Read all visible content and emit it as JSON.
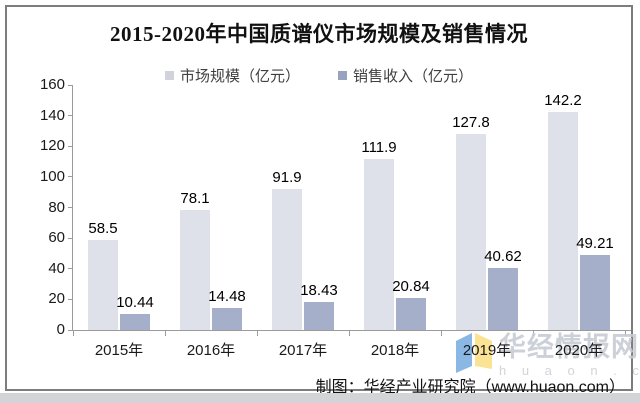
{
  "title": "2015-2020年中国质谱仪市场规模及销售情况",
  "legend": [
    {
      "label": "市场规模（亿元）",
      "color": "#d2d3da"
    },
    {
      "label": "销售收入（亿元）",
      "color": "#98a3c0"
    }
  ],
  "chart_data": {
    "type": "bar",
    "title": "2015-2020年中国质谱仪市场规模及销售情况",
    "categories": [
      "2015年",
      "2016年",
      "2017年",
      "2018年",
      "2019年",
      "2020年"
    ],
    "series": [
      {
        "key": "market-size",
        "name": "市场规模（亿元）",
        "color": "#dfe1ea",
        "values": [
          58.5,
          78.1,
          91.9,
          111.9,
          127.8,
          142.2
        ]
      },
      {
        "key": "sales-revenue",
        "name": "销售收入（亿元）",
        "color": "#a5afc9",
        "values": [
          10.44,
          14.48,
          18.43,
          20.84,
          40.62,
          49.21
        ]
      }
    ],
    "xlabel": "",
    "ylabel": "",
    "ylim": [
      0,
      160
    ],
    "yticks": [
      0,
      20,
      40,
      60,
      80,
      100,
      120,
      140,
      160
    ],
    "grid": false,
    "legend_position": "top",
    "data_labels": true
  },
  "watermark": {
    "brand": "华经情报网",
    "domain": "h u a o n . c o m",
    "logo_blue": "#7fb0e3",
    "logo_yellow": "#fae188"
  },
  "footer": {
    "credit": "制图：华经产业研究院（www.huaon.com）"
  }
}
